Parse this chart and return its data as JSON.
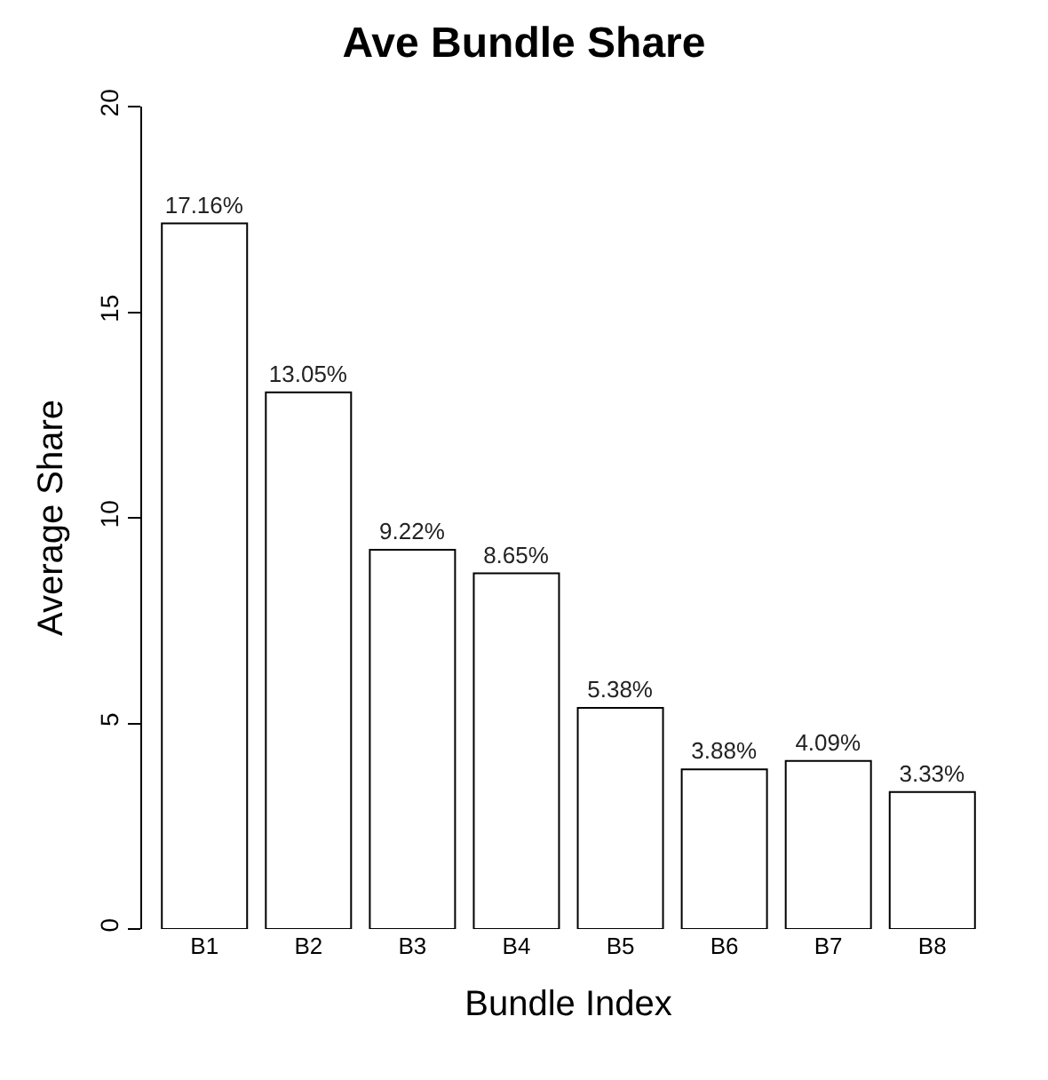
{
  "chart_data": {
    "type": "bar",
    "title": "Ave Bundle Share",
    "xlabel": "Bundle Index",
    "ylabel": "Average Share",
    "categories": [
      "B1",
      "B2",
      "B3",
      "B4",
      "B5",
      "B6",
      "B7",
      "B8"
    ],
    "values": [
      17.16,
      13.05,
      9.22,
      8.65,
      5.38,
      3.88,
      4.09,
      3.33
    ],
    "value_labels": [
      "17.16%",
      "13.05%",
      "9.22%",
      "8.65%",
      "5.38%",
      "3.88%",
      "4.09%",
      "3.33%"
    ],
    "color": "#ffffff",
    "ylim": [
      0,
      20
    ],
    "yticks": [
      0,
      5,
      10,
      15,
      20
    ]
  }
}
